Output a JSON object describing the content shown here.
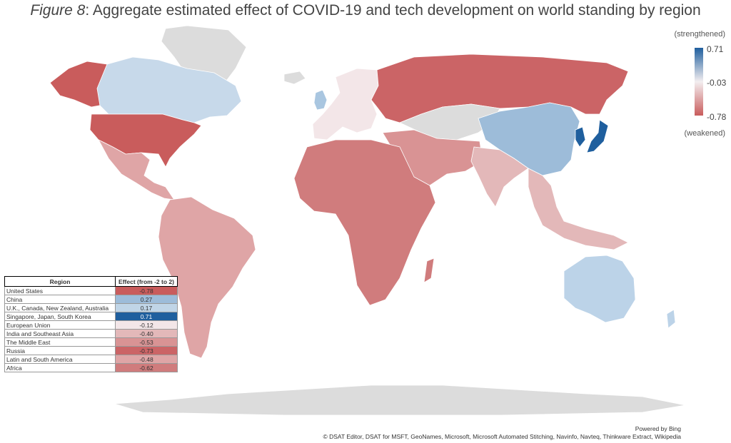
{
  "title_prefix": "Figure 8",
  "title_rest": ": Aggregate estimated effect of COVID-19 and tech development on world standing by region",
  "legend": {
    "top_label": "(strengthened)",
    "bottom_label": "(weakened)",
    "max": "0.71",
    "mid": "-0.03",
    "min": "-0.78",
    "color_max": "#1f5f9e",
    "color_mid": "#f3eef0",
    "color_min": "#c95c5c"
  },
  "table": {
    "col_region": "Region",
    "col_effect": "Effect (from -2 to 2)",
    "rows": [
      {
        "region": "United States",
        "effect": "-0.78",
        "color": "#c95c5c"
      },
      {
        "region": "China",
        "effect": "0.27",
        "color": "#9dbcd9"
      },
      {
        "region": "U.K., Canada, New Zealand, Australia",
        "effect": "0.17",
        "color": "#c0d5e7"
      },
      {
        "region": "Singapore, Japan, South Korea",
        "effect": "0.71",
        "color": "#1f5f9e"
      },
      {
        "region": "European Union",
        "effect": "-0.12",
        "color": "#f3e6e8"
      },
      {
        "region": "India and Southeast Asia",
        "effect": "-0.40",
        "color": "#e3b8b9"
      },
      {
        "region": "The Middle East",
        "effect": "-0.53",
        "color": "#d99394"
      },
      {
        "region": "Russia",
        "effect": "-0.73",
        "color": "#cb6466"
      },
      {
        "region": "Latin and South America",
        "effect": "-0.48",
        "color": "#dfa5a6"
      },
      {
        "region": "Africa",
        "effect": "-0.62",
        "color": "#d07c7d"
      }
    ]
  },
  "map_colors": {
    "no_data": "#dcdcdc",
    "usa": "#c95c5c",
    "canada": "#c7d9ea",
    "latam": "#dfa5a6",
    "eu": "#f3e6e8",
    "uk": "#a9c6e0",
    "russia": "#cb6466",
    "china": "#9dbcd9",
    "japan_korea": "#1f5f9e",
    "india_sea": "#e3b8b9",
    "middle_east": "#d99394",
    "africa": "#d07c7d",
    "australia": "#bcd3e8"
  },
  "credits": {
    "line1": "Powered by Bing",
    "line2": "© DSAT Editor, DSAT for MSFT, GeoNames, Microsoft, Microsoft Automated Stitching, Navinfo, Navteq, Thinkware Extract, Wikipedia"
  }
}
